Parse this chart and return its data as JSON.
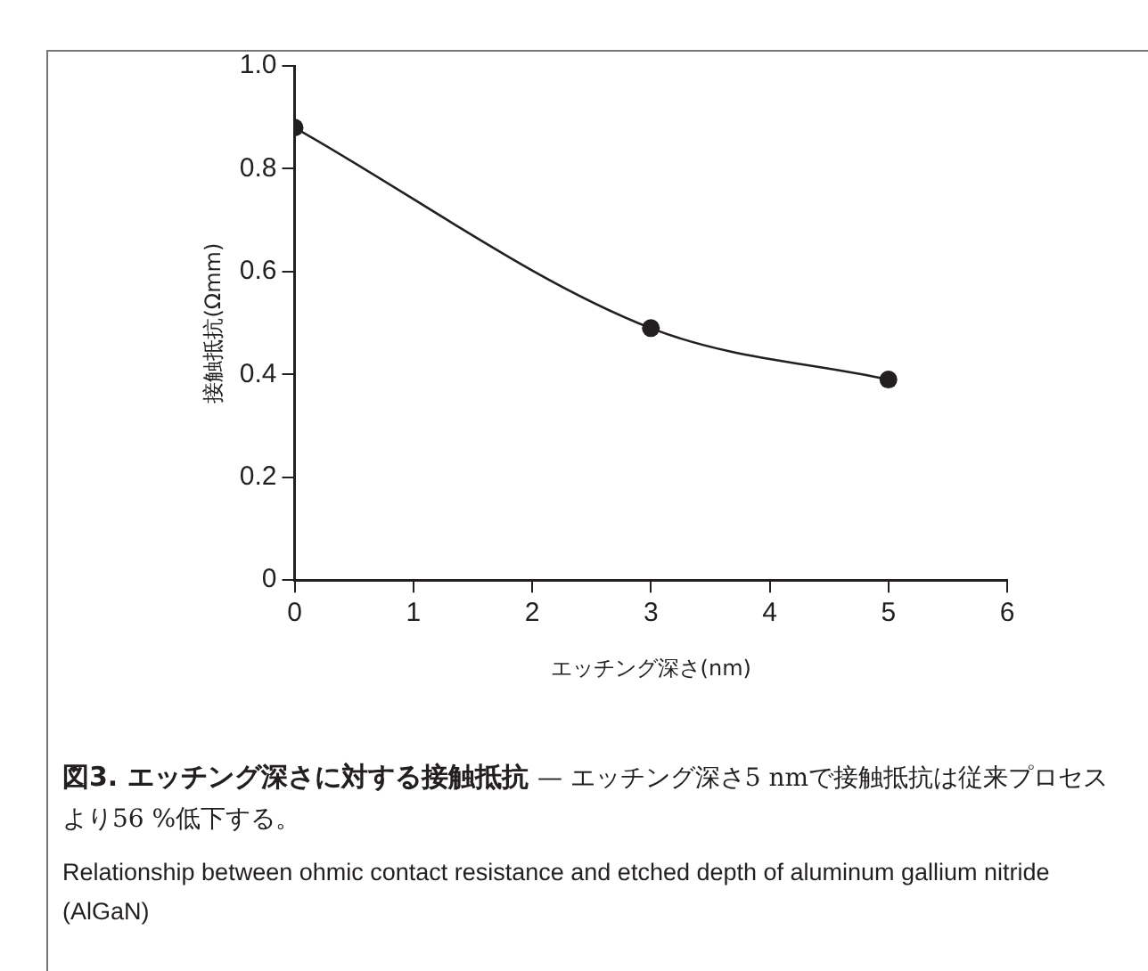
{
  "chart_data": {
    "type": "line",
    "title": "図3. エッチング深さに対する接触抵抗",
    "subtitle": "— エッチング深さ5 nmで接触抵抗は従来プロセスより56 %低下する。",
    "xlabel": "エッチング深さ(nm)",
    "ylabel": "接触抵抗(Ωmm)",
    "annotations": [
      "Relationship between ohmic contact resistance and etched depth of aluminum gallium nitride (AlGaN)"
    ],
    "x": [
      0,
      3,
      5
    ],
    "series": [
      {
        "color": "#231f20",
        "values": [
          0.88,
          0.49,
          0.39
        ]
      }
    ],
    "xlim": [
      0,
      6
    ],
    "xticks": [
      0,
      1,
      2,
      3,
      4,
      5,
      6
    ],
    "ylim": [
      0,
      1
    ],
    "yticks": [
      0,
      0.2,
      0.4,
      0.6,
      0.8,
      {
        "value": 1,
        "label": "1.0"
      }
    ],
    "grid": false,
    "legend": false,
    "marker": "circle",
    "line_style": "solid"
  }
}
